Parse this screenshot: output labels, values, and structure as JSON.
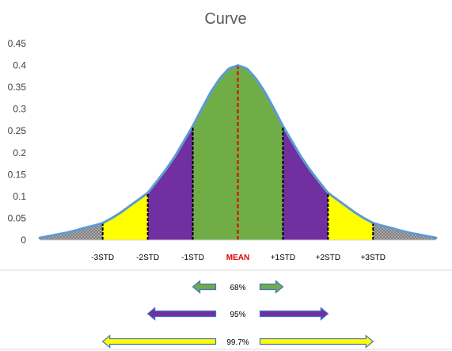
{
  "chart_data": {
    "type": "area",
    "title": "Curve",
    "xlabel": "",
    "ylabel": "",
    "ylim": [
      0,
      0.45
    ],
    "xlim": [
      -4.4,
      4.4
    ],
    "y_ticks": [
      "0",
      "0.05",
      "0.1",
      "0.15",
      "0.2",
      "0.25",
      "0.3",
      "0.35",
      "0.4",
      "0.45"
    ],
    "grid": false,
    "legend": "none",
    "curve": {
      "x": [
        -4.4,
        -4.2,
        -4.0,
        -3.8,
        -3.6,
        -3.4,
        -3.2,
        -3.0,
        -2.8,
        -2.6,
        -2.4,
        -2.2,
        -2.0,
        -1.8,
        -1.6,
        -1.4,
        -1.2,
        -1.0,
        -0.8,
        -0.6,
        -0.4,
        -0.2,
        0.0,
        0.2,
        0.4,
        0.6,
        0.8,
        1.0,
        1.2,
        1.4,
        1.6,
        1.8,
        2.0,
        2.2,
        2.4,
        2.6,
        2.8,
        3.0,
        3.2,
        3.4,
        3.6,
        3.8,
        4.0,
        4.2,
        4.4
      ],
      "y": [
        0.005,
        0.009,
        0.013,
        0.017,
        0.022,
        0.028,
        0.033,
        0.039,
        0.05,
        0.063,
        0.078,
        0.093,
        0.108,
        0.134,
        0.161,
        0.191,
        0.226,
        0.261,
        0.301,
        0.339,
        0.37,
        0.393,
        0.4,
        0.393,
        0.37,
        0.339,
        0.301,
        0.261,
        0.226,
        0.191,
        0.161,
        0.134,
        0.108,
        0.093,
        0.078,
        0.063,
        0.05,
        0.039,
        0.033,
        0.028,
        0.022,
        0.017,
        0.013,
        0.009,
        0.005
      ]
    },
    "curve_color": "#5b9bd5",
    "bands": [
      {
        "from": -1,
        "to": 1,
        "color": "#70ad47"
      },
      {
        "from": -2,
        "to": -1,
        "color": "#7030a0"
      },
      {
        "from": 1,
        "to": 2,
        "color": "#7030a0"
      },
      {
        "from": -3,
        "to": -2,
        "color": "#ffff00"
      },
      {
        "from": 2,
        "to": 3,
        "color": "#ffff00"
      },
      {
        "from": -4.4,
        "to": -3,
        "color": "#7f7f7f",
        "pattern": "dots"
      },
      {
        "from": 3,
        "to": 4.4,
        "color": "#7f7f7f",
        "pattern": "dots"
      }
    ],
    "markers": [
      {
        "x": -3,
        "label": "-3STD"
      },
      {
        "x": -2,
        "label": "-2STD"
      },
      {
        "x": -1,
        "label": "-1STD"
      },
      {
        "x": 0,
        "label": "MEAN",
        "color": "#e00000"
      },
      {
        "x": 1,
        "label": "+1STD"
      },
      {
        "x": 2,
        "label": "+2STD"
      },
      {
        "x": 3,
        "label": "+3STD"
      }
    ],
    "ranges": [
      {
        "label": "68%",
        "from": -1,
        "to": 1,
        "color": "#70ad47"
      },
      {
        "label": "95%",
        "from": -2,
        "to": 2,
        "color": "#7030a0"
      },
      {
        "label": "99.7%",
        "from": -3,
        "to": 3,
        "color": "#ffff00"
      }
    ]
  }
}
